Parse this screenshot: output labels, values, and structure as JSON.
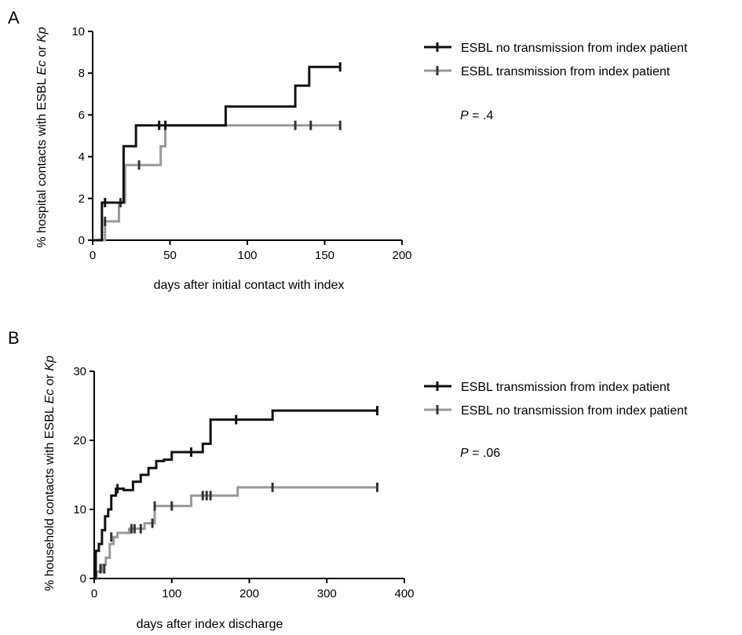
{
  "chart_data": [
    {
      "type": "line",
      "panel": "A",
      "xlabel": "days after initial contact with index",
      "ylabel": [
        "% hospital contacts with ESBL ",
        "Ec",
        " or ",
        "Kp"
      ],
      "xlim": [
        0,
        200
      ],
      "ylim": [
        0,
        10
      ],
      "xticks": [
        0,
        50,
        100,
        150,
        200
      ],
      "yticks": [
        0,
        2,
        4,
        6,
        8,
        10
      ],
      "grid": false,
      "legend_position": "top-right",
      "p_value": [
        "P",
        " = .4"
      ],
      "series": [
        {
          "name": "ESBL no transmission from index patient",
          "color": "#111111",
          "steps": [
            [
              0,
              0
            ],
            [
              6,
              1.8
            ],
            [
              20,
              4.5
            ],
            [
              28,
              5.5
            ],
            [
              86,
              6.4
            ],
            [
              131,
              7.4
            ],
            [
              140,
              8.3
            ],
            [
              160,
              8.3
            ]
          ],
          "censor": [
            [
              8,
              1.8
            ],
            [
              43,
              5.5
            ],
            [
              47,
              5.5
            ],
            [
              160,
              8.3
            ]
          ]
        },
        {
          "name": "ESBL transmission from index patient",
          "color": "#999999",
          "steps": [
            [
              0,
              0
            ],
            [
              6,
              0
            ],
            [
              8,
              0.9
            ],
            [
              17,
              1.8
            ],
            [
              21,
              3.6
            ],
            [
              44,
              4.5
            ],
            [
              47,
              5.5
            ],
            [
              160,
              5.5
            ]
          ],
          "censor": [
            [
              8,
              0.9
            ],
            [
              18,
              1.8
            ],
            [
              30,
              3.6
            ],
            [
              131,
              5.5
            ],
            [
              141,
              5.5
            ],
            [
              160,
              5.5
            ]
          ]
        }
      ]
    },
    {
      "type": "line",
      "panel": "B",
      "xlabel": "days after index discharge",
      "ylabel": [
        "% household contacts with ESBL ",
        "Ec",
        " or ",
        "Kp"
      ],
      "xlim": [
        0,
        400
      ],
      "ylim": [
        0,
        30
      ],
      "xticks": [
        0,
        100,
        200,
        300,
        400
      ],
      "yticks": [
        0,
        10,
        20,
        30
      ],
      "grid": false,
      "legend_position": "top-right",
      "p_value": [
        "P",
        " = .06"
      ],
      "series": [
        {
          "name": "ESBL transmission from index patient",
          "color": "#111111",
          "steps": [
            [
              0,
              0
            ],
            [
              2,
              4
            ],
            [
              6,
              5
            ],
            [
              10,
              7
            ],
            [
              14,
              9
            ],
            [
              18,
              10
            ],
            [
              22,
              12
            ],
            [
              28,
              13
            ],
            [
              38,
              12.8
            ],
            [
              50,
              14
            ],
            [
              60,
              15
            ],
            [
              70,
              16
            ],
            [
              80,
              17
            ],
            [
              90,
              17.2
            ],
            [
              100,
              18.3
            ],
            [
              140,
              19.5
            ],
            [
              150,
              23
            ],
            [
              230,
              24.3
            ],
            [
              365,
              24.3
            ]
          ],
          "censor": [
            [
              30,
              13
            ],
            [
              125,
              18.3
            ],
            [
              183,
              23
            ],
            [
              365,
              24.3
            ]
          ]
        },
        {
          "name": "ESBL no transmission from index patient",
          "color": "#999999",
          "steps": [
            [
              0,
              0
            ],
            [
              3,
              1
            ],
            [
              10,
              2
            ],
            [
              15,
              3
            ],
            [
              20,
              5
            ],
            [
              25,
              6
            ],
            [
              30,
              6.6
            ],
            [
              45,
              7.2
            ],
            [
              65,
              8
            ],
            [
              78,
              10.5
            ],
            [
              125,
              12
            ],
            [
              185,
              13.2
            ],
            [
              365,
              13.2
            ]
          ],
          "censor": [
            [
              8,
              1.4
            ],
            [
              13,
              1.4
            ],
            [
              22,
              6
            ],
            [
              48,
              7.2
            ],
            [
              52,
              7.2
            ],
            [
              60,
              7.2
            ],
            [
              75,
              8
            ],
            [
              78,
              10.5
            ],
            [
              100,
              10.5
            ],
            [
              140,
              12
            ],
            [
              145,
              12
            ],
            [
              150,
              12
            ],
            [
              230,
              13.2
            ],
            [
              365,
              13.2
            ]
          ]
        }
      ]
    }
  ]
}
